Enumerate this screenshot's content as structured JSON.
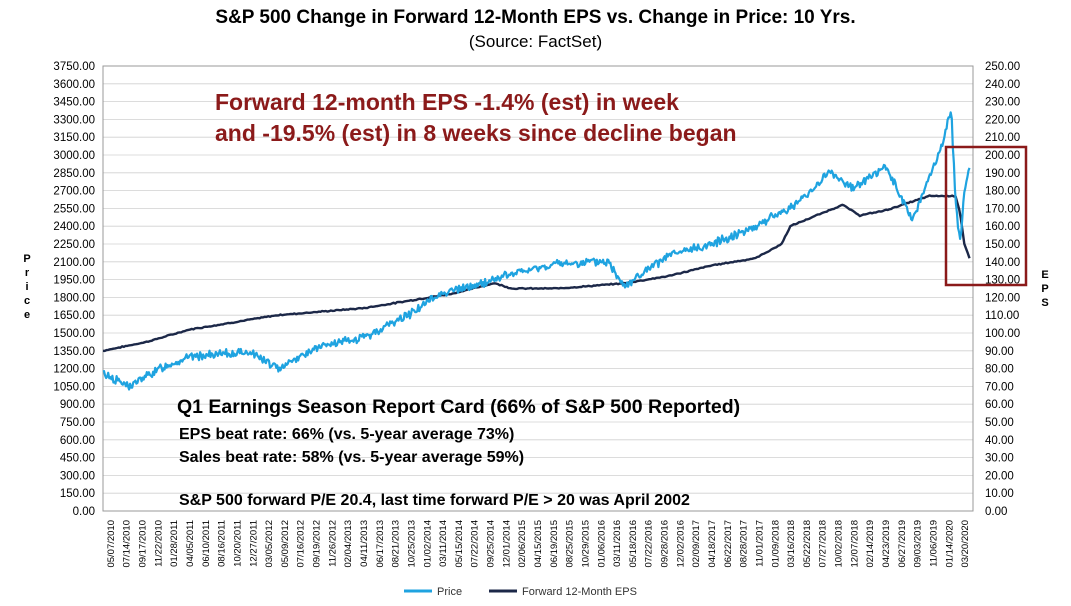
{
  "colors": {
    "price": "#1fa3e0",
    "eps": "#1c2848",
    "highlight": "#8b1a1a",
    "grid": "#d0d0d0"
  },
  "chart_data": {
    "type": "line",
    "title": "S&P 500 Change in Forward 12-Month EPS vs. Change in Price: 10 Yrs.",
    "subtitle": "(Source: FactSet)",
    "ylabel": "Price",
    "y2label": "EPS",
    "ylim": [
      0,
      3750
    ],
    "y2lim": [
      0,
      250
    ],
    "ytick_labels": [
      "0.00",
      "150.00",
      "300.00",
      "450.00",
      "600.00",
      "750.00",
      "900.00",
      "1050.00",
      "1200.00",
      "1350.00",
      "1500.00",
      "1650.00",
      "1800.00",
      "1950.00",
      "2100.00",
      "2250.00",
      "2400.00",
      "2550.00",
      "2700.00",
      "2850.00",
      "3000.00",
      "3150.00",
      "3300.00",
      "3450.00",
      "3600.00",
      "3750.00"
    ],
    "y2tick_labels": [
      "0.00",
      "10.00",
      "20.00",
      "30.00",
      "40.00",
      "50.00",
      "60.00",
      "70.00",
      "80.00",
      "90.00",
      "100.00",
      "110.00",
      "120.00",
      "130.00",
      "140.00",
      "150.00",
      "160.00",
      "170.00",
      "180.00",
      "190.00",
      "200.00",
      "210.00",
      "220.00",
      "230.00",
      "240.00",
      "250.00"
    ],
    "xtick_labels": [
      "05/07/2010",
      "07/14/2010",
      "09/17/2010",
      "11/22/2010",
      "01/28/2011",
      "04/05/2011",
      "06/10/2011",
      "08/16/2011",
      "10/20/2011",
      "12/27/2011",
      "03/05/2012",
      "05/09/2012",
      "07/16/2012",
      "09/19/2012",
      "11/26/2012",
      "02/04/2013",
      "04/11/2013",
      "06/17/2013",
      "08/21/2013",
      "10/25/2013",
      "01/02/2014",
      "03/11/2014",
      "05/15/2014",
      "07/22/2014",
      "09/25/2014",
      "12/01/2014",
      "02/06/2015",
      "04/15/2015",
      "06/19/2015",
      "08/25/2015",
      "10/29/2015",
      "01/06/2016",
      "03/11/2016",
      "05/18/2016",
      "07/22/2016",
      "09/28/2016",
      "12/02/2016",
      "02/09/2017",
      "04/18/2017",
      "06/22/2017",
      "08/28/2017",
      "11/01/2017",
      "01/09/2018",
      "03/16/2018",
      "05/22/2018",
      "07/27/2018",
      "10/02/2018",
      "12/07/2018",
      "02/14/2019",
      "04/23/2019",
      "06/27/2019",
      "09/03/2019",
      "11/06/2019",
      "01/14/2020",
      "03/20/2020"
    ],
    "series": [
      {
        "name": "Price",
        "t": [
          0,
          0.3,
          0.7,
          1,
          1.7,
          2,
          2.2,
          2.45,
          2.6,
          3,
          3.5,
          3.9,
          4.3,
          4.6,
          5.2,
          5.8,
          6,
          6.5,
          7,
          7.5,
          8,
          8.35,
          8.6,
          9,
          9.3,
          9.55,
          9.65,
          9.75,
          9.8,
          9.85,
          9.9,
          9.96
        ],
        "values": [
          1160,
          1050,
          1220,
          1300,
          1340,
          1200,
          1280,
          1370,
          1400,
          1460,
          1650,
          1840,
          1900,
          1980,
          2080,
          2100,
          1900,
          2150,
          2250,
          2400,
          2600,
          2860,
          2720,
          2900,
          2450,
          2900,
          3100,
          3380,
          2600,
          2250,
          2700,
          2900
        ]
      },
      {
        "name": "Forward 12-Month EPS",
        "t": [
          0,
          0.5,
          1,
          2,
          3,
          4,
          4.5,
          4.7,
          5,
          5.2,
          5.5,
          6,
          6.5,
          7,
          7.5,
          7.8,
          7.9,
          8.3,
          8.5,
          8.7,
          9,
          9.5,
          9.8,
          9.85,
          9.9,
          9.96
        ],
        "values": [
          90,
          95,
          102,
          110,
          114,
          122,
          128,
          125,
          125,
          125,
          126,
          128,
          132,
          138,
          142,
          150,
          160,
          168,
          172,
          166,
          169,
          177,
          177,
          168,
          150,
          142
        ]
      }
    ]
  },
  "annotation": {
    "line1": "Forward 12-month EPS -1.4% (est) in week",
    "line2": "and -19.5% (est) in 8 weeks since decline began"
  },
  "report_card": {
    "heading": "Q1 Earnings Season Report Card (66% of S&P 500 Reported)",
    "eps_beat": "EPS beat rate: 66% (vs. 5-year average 73%)",
    "sales_beat": "Sales beat rate: 58% (vs. 5-year average 59%)",
    "pe_note": "S&P 500 forward P/E 20.4, last time forward P/E > 20 was April 2002"
  },
  "legend": {
    "price": "Price",
    "eps": "Forward 12-Month EPS"
  }
}
